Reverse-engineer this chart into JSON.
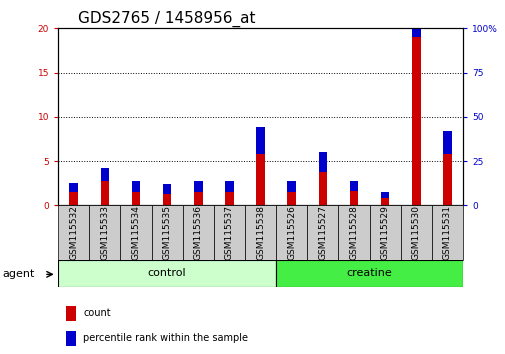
{
  "title": "GDS2765 / 1458956_at",
  "samples": [
    "GSM115532",
    "GSM115533",
    "GSM115534",
    "GSM115535",
    "GSM115536",
    "GSM115537",
    "GSM115538",
    "GSM115526",
    "GSM115527",
    "GSM115528",
    "GSM115529",
    "GSM115530",
    "GSM115531"
  ],
  "count_values": [
    1.5,
    2.8,
    1.5,
    1.3,
    1.5,
    1.5,
    5.8,
    1.5,
    3.8,
    1.6,
    0.8,
    19.0,
    5.8
  ],
  "percentile_values": [
    1.0,
    1.4,
    1.2,
    1.1,
    1.2,
    1.3,
    3.0,
    1.2,
    2.2,
    1.2,
    0.7,
    6.5,
    2.6
  ],
  "control_count": 7,
  "creatine_count": 6,
  "left_ylim": [
    0,
    20
  ],
  "right_ylim": [
    0,
    100
  ],
  "left_yticks": [
    0,
    5,
    10,
    15,
    20
  ],
  "right_yticks": [
    0,
    25,
    50,
    75,
    100
  ],
  "count_color": "#cc0000",
  "percentile_color": "#0000cc",
  "control_color": "#ccffcc",
  "creatine_color": "#44ee44",
  "bar_bg_color": "#cccccc",
  "title_fontsize": 11,
  "tick_fontsize": 6.5,
  "label_fontsize": 8,
  "bar_width": 0.55
}
